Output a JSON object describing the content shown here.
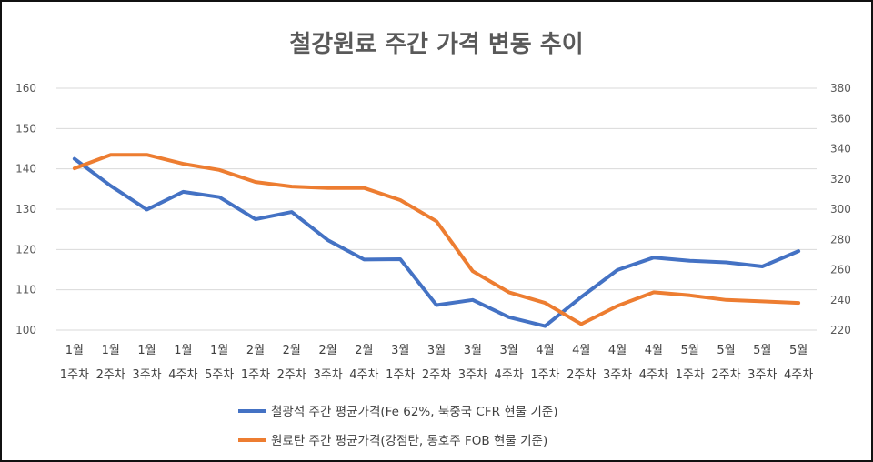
{
  "chart_data": {
    "type": "line",
    "title": "철강원료 주간 가격 변동 추이",
    "x": [
      "1월 1주차",
      "1월 2주차",
      "1월 3주차",
      "1월 4주차",
      "1월 5주차",
      "2월 1주차",
      "2월 2주차",
      "2월 3주차",
      "2월 4주차",
      "3월 1주차",
      "3월 2주차",
      "3월 3주차",
      "3월 4주차",
      "4월 1주차",
      "4월 2주차",
      "4월 3주차",
      "4월 4주차",
      "5월 1주차",
      "5월 2주차",
      "5월 3주차",
      "5월 4주차"
    ],
    "x_month": [
      "1월",
      "1월",
      "1월",
      "1월",
      "1월",
      "2월",
      "2월",
      "2월",
      "2월",
      "3월",
      "3월",
      "3월",
      "3월",
      "4월",
      "4월",
      "4월",
      "4월",
      "5월",
      "5월",
      "5월",
      "5월"
    ],
    "x_week": [
      "1주차",
      "2주차",
      "3주차",
      "4주차",
      "5주차",
      "1주차",
      "2주차",
      "3주차",
      "4주차",
      "1주차",
      "2주차",
      "3주차",
      "4주차",
      "1주차",
      "2주차",
      "3주차",
      "4주차",
      "1주차",
      "2주차",
      "3주차",
      "4주차"
    ],
    "y_left": {
      "ylim": [
        100,
        160
      ],
      "ticks": [
        100,
        110,
        120,
        130,
        140,
        150,
        160
      ]
    },
    "y_right": {
      "ylim": [
        220,
        380
      ],
      "ticks": [
        220,
        240,
        260,
        280,
        300,
        320,
        340,
        360,
        380
      ]
    },
    "grid": true,
    "legend_position": "bottom",
    "series": [
      {
        "name": "철광석 주간 평균가격(Fe 62%, 북중국 CFR 현물 기준)",
        "axis": "left",
        "color": "#4472C4",
        "values": [
          142.5,
          135.8,
          129.9,
          134.3,
          133.0,
          127.5,
          129.3,
          122.3,
          117.5,
          117.6,
          106.2,
          107.5,
          103.2,
          101.0,
          108.2,
          114.9,
          118.0,
          117.2,
          116.8,
          115.8,
          119.6
        ]
      },
      {
        "name": "원료탄 주간 평균가격(강점탄, 동호주 FOB 현물 기준)",
        "axis": "right",
        "color": "#ED7D31",
        "values": [
          327,
          336,
          336,
          330,
          326,
          318,
          315,
          314,
          314,
          306,
          292,
          259,
          245,
          238,
          224,
          236,
          245,
          243,
          240,
          239,
          238
        ]
      }
    ]
  }
}
